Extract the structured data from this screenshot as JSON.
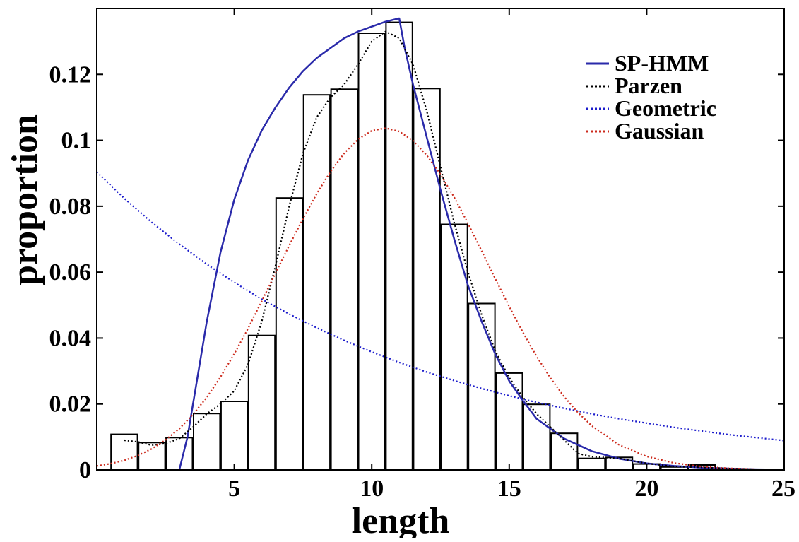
{
  "chart_data": {
    "type": "bar",
    "title": "",
    "xlabel": "length",
    "ylabel": "proportion",
    "xlim": [
      0,
      25
    ],
    "ylim": [
      0,
      0.14
    ],
    "grid": false,
    "legend_position": "top-right",
    "xticks": [
      5,
      10,
      15,
      20,
      25
    ],
    "xtick_labels": [
      "5",
      "10",
      "15",
      "20",
      "25"
    ],
    "yticks": [
      0,
      0.02,
      0.04,
      0.06,
      0.08,
      0.1,
      0.12
    ],
    "ytick_labels": [
      "0",
      "0.02",
      "0.04",
      "0.06",
      "0.08",
      "0.1",
      "0.12"
    ],
    "histogram": {
      "bin_width": 0.96,
      "bin_centers": [
        1,
        2,
        3,
        4,
        5,
        6,
        7,
        8,
        9,
        10,
        11,
        12,
        13,
        14,
        15,
        16,
        17,
        18,
        19,
        20,
        21,
        22,
        23
      ],
      "values": [
        0.0108,
        0.0083,
        0.0098,
        0.0171,
        0.0208,
        0.0408,
        0.0825,
        0.1138,
        0.1155,
        0.1325,
        0.1358,
        0.1157,
        0.0745,
        0.0505,
        0.0294,
        0.0199,
        0.0111,
        0.0035,
        0.0038,
        0.0018,
        0.0009,
        0.0015,
        0.0003
      ],
      "color": "#000000"
    },
    "series": [
      {
        "name": "SP-HMM",
        "style": "solid",
        "color": "#2a2aaa",
        "x": [
          0,
          3.0,
          3.3,
          3.6,
          4.0,
          4.5,
          5.0,
          5.5,
          6.0,
          6.5,
          7.0,
          7.5,
          8.0,
          8.5,
          9.0,
          9.5,
          10.0,
          10.5,
          11.0,
          11.2,
          11.5,
          12.0,
          12.5,
          13.0,
          13.5,
          14.0,
          14.5,
          15.0,
          15.5,
          16.0,
          17.0,
          18.0,
          19.0,
          20.0,
          21.0,
          22.0,
          23.0,
          24.0,
          25.0
        ],
        "y": [
          0,
          0,
          0.01,
          0.025,
          0.045,
          0.066,
          0.082,
          0.094,
          0.103,
          0.11,
          0.116,
          0.121,
          0.125,
          0.128,
          0.131,
          0.133,
          0.1345,
          0.136,
          0.137,
          0.128,
          0.117,
          0.101,
          0.085,
          0.07,
          0.056,
          0.045,
          0.035,
          0.027,
          0.021,
          0.0155,
          0.0095,
          0.0057,
          0.0034,
          0.002,
          0.0012,
          0.0007,
          0.0004,
          0.0002,
          0.0001
        ]
      },
      {
        "name": "Parzen",
        "style": "dotted",
        "color": "#000000",
        "x": [
          1.0,
          1.5,
          2.0,
          2.5,
          3.0,
          3.5,
          4.0,
          4.5,
          5.0,
          5.5,
          6.0,
          6.5,
          7.0,
          7.5,
          8.0,
          8.5,
          9.0,
          9.5,
          10.0,
          10.5,
          11.0,
          11.5,
          12.0,
          12.5,
          13.0,
          13.5,
          14.0,
          14.5,
          15.0,
          15.5,
          16.0,
          16.5,
          17.0,
          17.5,
          18.0,
          19.0,
          20.0,
          21.0,
          22.0,
          23.0,
          24.0,
          25.0
        ],
        "y": [
          0.009,
          0.0085,
          0.0075,
          0.008,
          0.0095,
          0.013,
          0.017,
          0.02,
          0.024,
          0.032,
          0.045,
          0.062,
          0.08,
          0.096,
          0.107,
          0.113,
          0.117,
          0.123,
          0.13,
          0.133,
          0.131,
          0.123,
          0.109,
          0.092,
          0.075,
          0.06,
          0.047,
          0.036,
          0.028,
          0.022,
          0.017,
          0.013,
          0.009,
          0.005,
          0.004,
          0.0035,
          0.002,
          0.001,
          0.0008,
          0.0004,
          0.0002,
          0.0001
        ]
      },
      {
        "name": "Geometric",
        "style": "dotted",
        "color": "#1c1ccc",
        "x": [
          0,
          1,
          2,
          3,
          4,
          5,
          6,
          7,
          8,
          9,
          10,
          11,
          12,
          13,
          14,
          15,
          16,
          17,
          18,
          19,
          20,
          21,
          22,
          23,
          24,
          25
        ],
        "y": [
          0.0904,
          0.0824,
          0.0751,
          0.0685,
          0.0624,
          0.0569,
          0.0518,
          0.0473,
          0.0431,
          0.0393,
          0.0358,
          0.0326,
          0.0297,
          0.0271,
          0.0247,
          0.0225,
          0.0205,
          0.0187,
          0.017,
          0.0155,
          0.0142,
          0.0129,
          0.0118,
          0.0107,
          0.0098,
          0.0089
        ]
      },
      {
        "name": "Gaussian",
        "style": "dotted",
        "color": "#cc2a1c",
        "x": [
          0,
          0.5,
          1,
          1.5,
          2,
          2.5,
          3,
          3.5,
          4,
          4.5,
          5,
          5.5,
          6,
          6.5,
          7,
          7.5,
          8,
          8.5,
          9,
          9.5,
          10,
          10.5,
          11,
          11.5,
          12,
          12.5,
          13,
          13.5,
          14,
          14.5,
          15,
          15.5,
          16,
          16.5,
          17,
          17.5,
          18,
          19,
          20,
          21,
          22,
          23,
          24,
          25
        ],
        "y": [
          0.0012,
          0.0019,
          0.0029,
          0.0044,
          0.0064,
          0.0091,
          0.0125,
          0.0168,
          0.022,
          0.0282,
          0.0352,
          0.0429,
          0.0512,
          0.0597,
          0.0681,
          0.0762,
          0.0838,
          0.0905,
          0.0961,
          0.1003,
          0.1029,
          0.1037,
          0.1027,
          0.0999,
          0.0955,
          0.0897,
          0.0827,
          0.0748,
          0.0664,
          0.0579,
          0.0496,
          0.0417,
          0.0344,
          0.0279,
          0.0222,
          0.0174,
          0.0134,
          0.0076,
          0.0041,
          0.0021,
          0.001,
          0.0005,
          0.0002,
          0.0001
        ]
      }
    ]
  }
}
